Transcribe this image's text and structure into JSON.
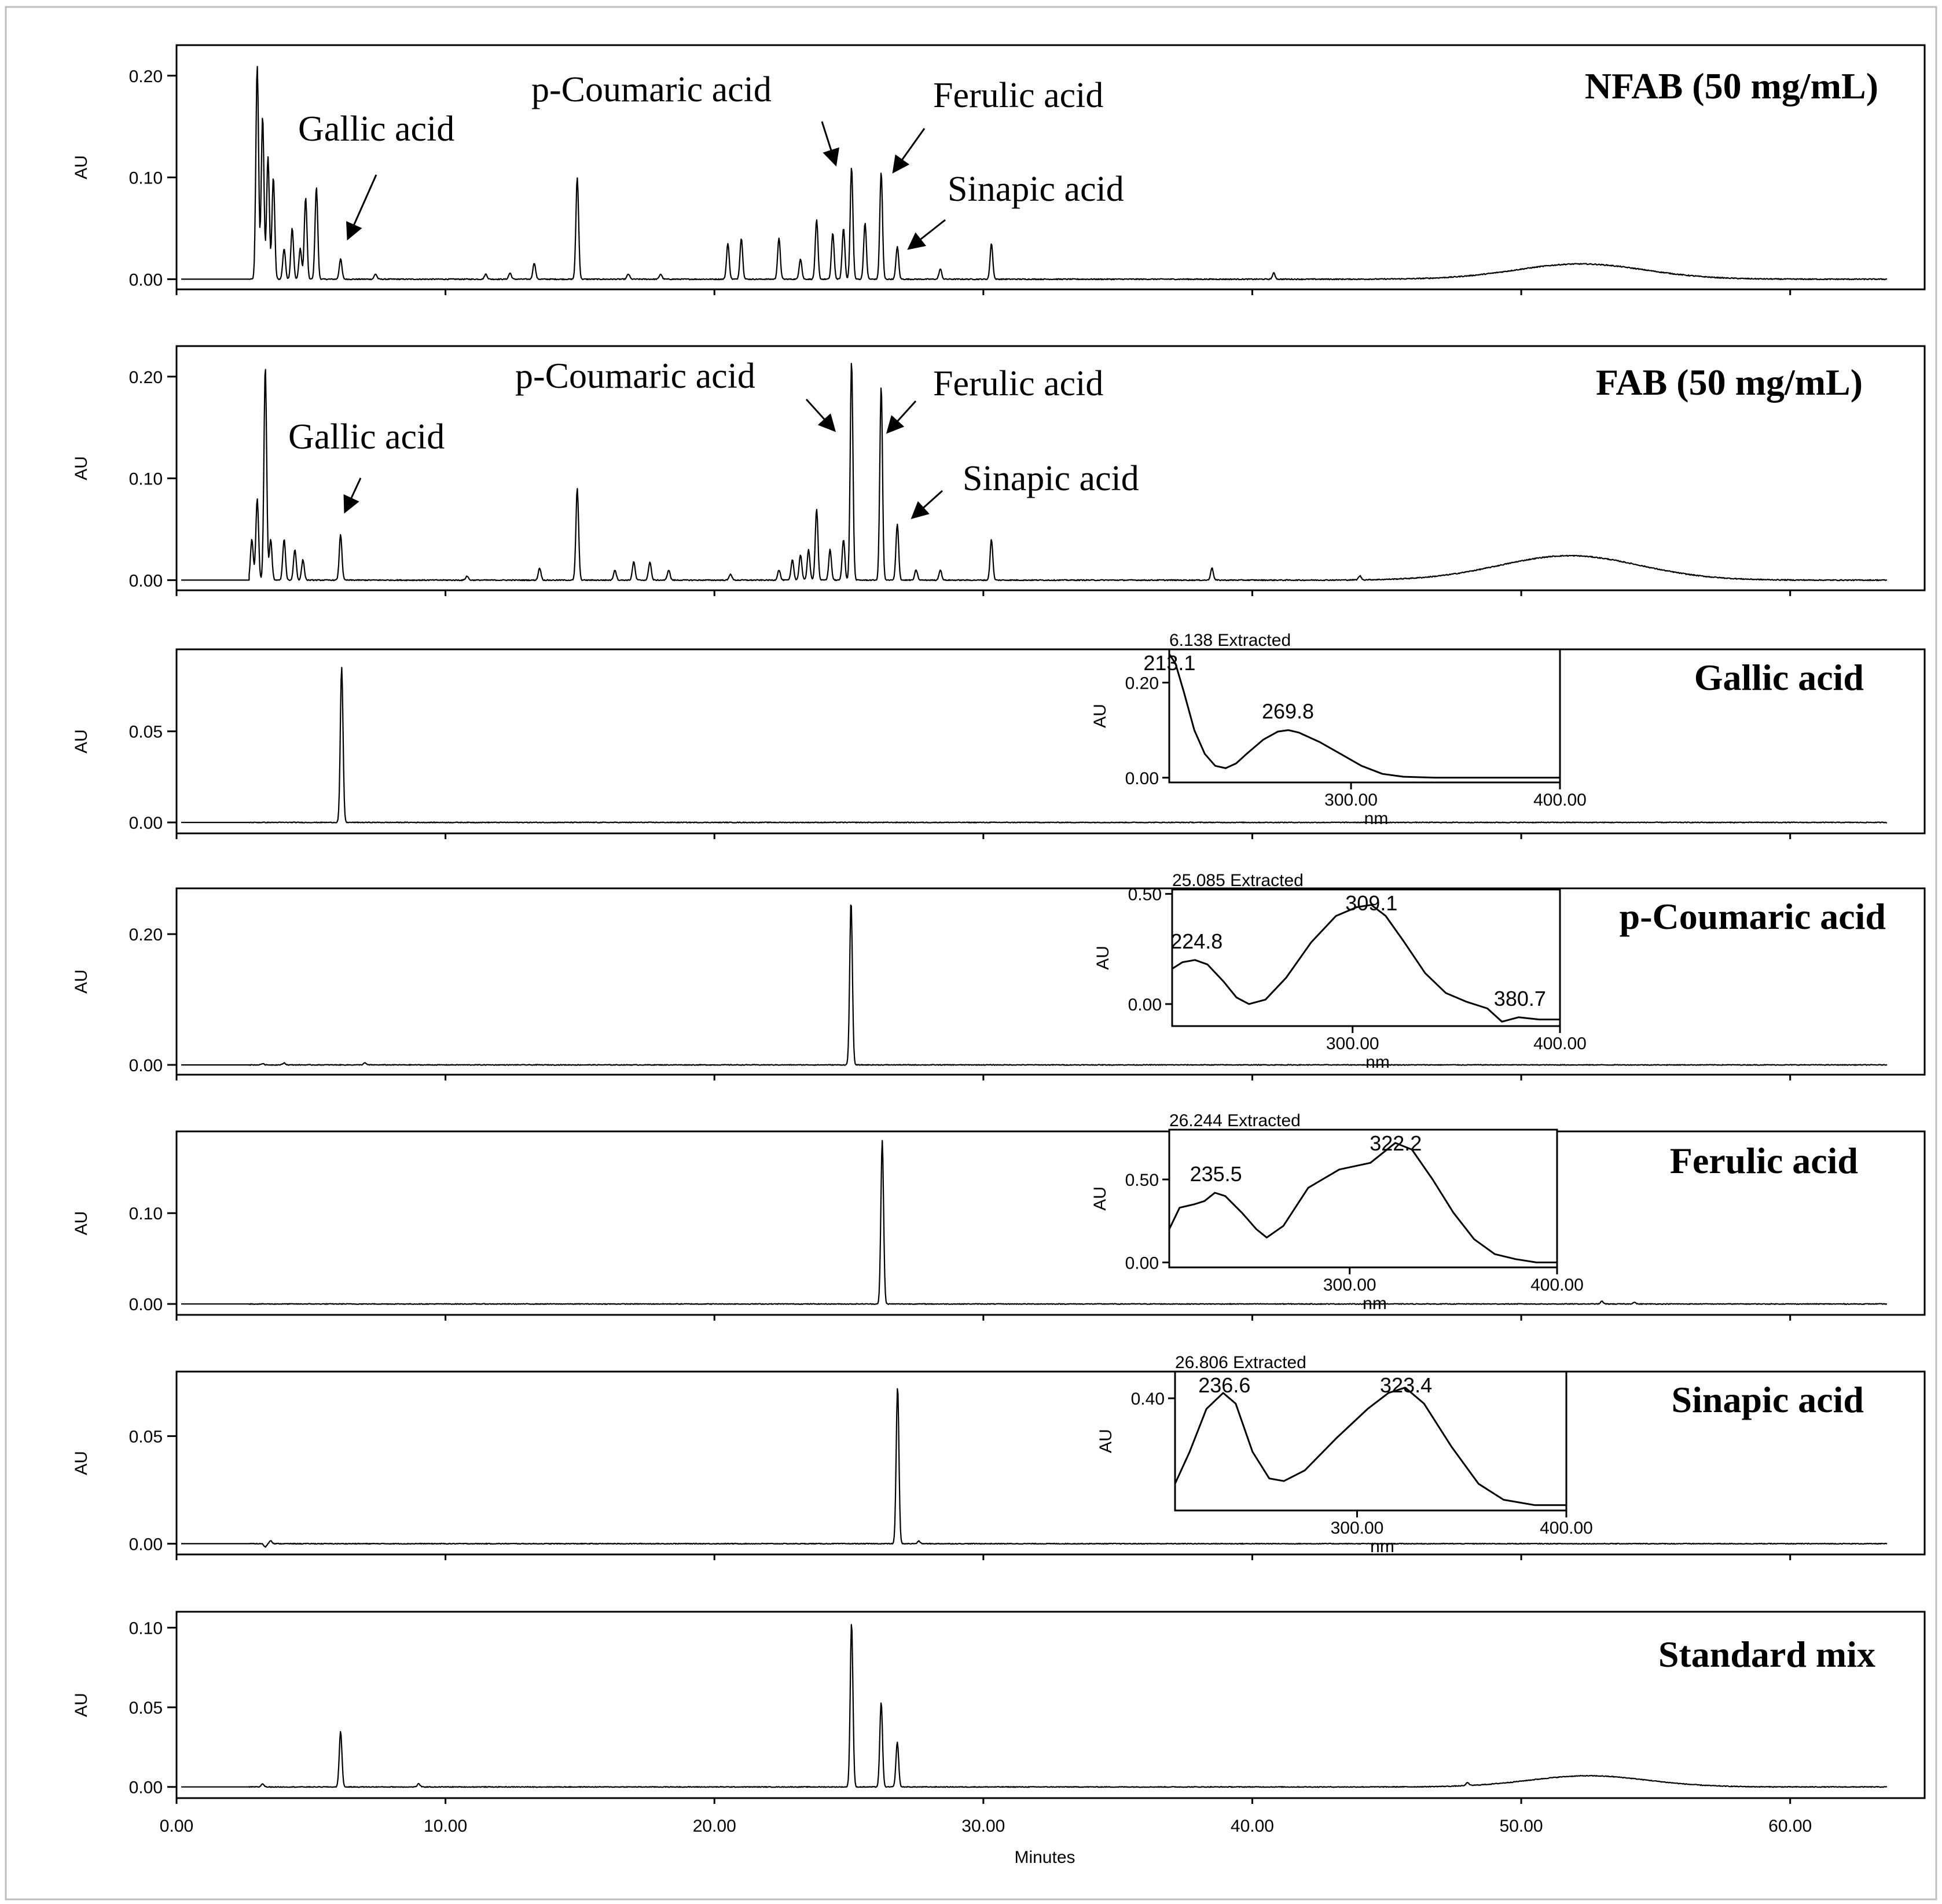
{
  "chart_data": {
    "type": "line",
    "figure_kind": "HPLC chromatograms with inset UV spectra",
    "xlabel": "Minutes",
    "ylabel": "AU",
    "xlim": [
      0,
      65
    ],
    "xticks": [
      "0.00",
      "10.00",
      "20.00",
      "30.00",
      "40.00",
      "50.00",
      "60.00"
    ],
    "panels": [
      {
        "title": "NFAB (50 mg/mL)",
        "ylabel": "AU",
        "ylim": [
          -0.01,
          0.23
        ],
        "yticks": [
          "0.00",
          "0.10",
          "0.20"
        ],
        "baseline": 0.0,
        "peaks": [
          [
            3.0,
            0.21
          ],
          [
            3.2,
            0.16
          ],
          [
            3.4,
            0.12
          ],
          [
            3.6,
            0.1
          ],
          [
            4.0,
            0.03
          ],
          [
            4.3,
            0.05
          ],
          [
            4.6,
            0.03
          ],
          [
            4.8,
            0.08
          ],
          [
            5.2,
            0.09
          ],
          [
            6.1,
            0.02
          ],
          [
            7.4,
            0.005
          ],
          [
            11.5,
            0.005
          ],
          [
            12.4,
            0.006
          ],
          [
            13.3,
            0.016
          ],
          [
            14.9,
            0.1
          ],
          [
            16.8,
            0.005
          ],
          [
            18.0,
            0.005
          ],
          [
            20.5,
            0.035
          ],
          [
            21.0,
            0.04
          ],
          [
            22.4,
            0.04
          ],
          [
            23.2,
            0.02
          ],
          [
            23.8,
            0.058
          ],
          [
            24.4,
            0.045
          ],
          [
            24.8,
            0.05
          ],
          [
            25.1,
            0.11
          ],
          [
            25.6,
            0.055
          ],
          [
            26.2,
            0.105
          ],
          [
            26.8,
            0.032
          ],
          [
            28.4,
            0.01
          ],
          [
            30.3,
            0.035
          ],
          [
            40.8,
            0.006
          ]
        ],
        "humps": [
          [
            52.2,
            0.015,
            2.4
          ]
        ],
        "annotations": [
          {
            "text": "Gallic  acid",
            "time": 6.1
          },
          {
            "text": "p-Coumaric  acid",
            "time": 25.1
          },
          {
            "text": "Ferulic  acid",
            "time": 26.2
          },
          {
            "text": "Sinapic  acid",
            "time": 26.8
          }
        ]
      },
      {
        "title": "FAB (50 mg/mL)",
        "ylabel": "AU",
        "ylim": [
          -0.01,
          0.23
        ],
        "yticks": [
          "0.00",
          "0.10",
          "0.20"
        ],
        "baseline": 0.0,
        "peaks": [
          [
            2.8,
            0.04
          ],
          [
            3.0,
            0.08
          ],
          [
            3.3,
            0.21
          ],
          [
            3.5,
            0.04
          ],
          [
            4.0,
            0.04
          ],
          [
            4.4,
            0.03
          ],
          [
            4.7,
            0.02
          ],
          [
            6.1,
            0.045
          ],
          [
            10.8,
            0.004
          ],
          [
            13.5,
            0.012
          ],
          [
            14.9,
            0.09
          ],
          [
            16.3,
            0.01
          ],
          [
            17.0,
            0.018
          ],
          [
            17.6,
            0.018
          ],
          [
            18.3,
            0.01
          ],
          [
            20.6,
            0.006
          ],
          [
            22.4,
            0.01
          ],
          [
            22.9,
            0.02
          ],
          [
            23.2,
            0.025
          ],
          [
            23.5,
            0.03
          ],
          [
            23.8,
            0.07
          ],
          [
            24.3,
            0.03
          ],
          [
            24.8,
            0.04
          ],
          [
            25.1,
            0.215
          ],
          [
            26.2,
            0.19
          ],
          [
            26.8,
            0.055
          ],
          [
            27.5,
            0.01
          ],
          [
            28.4,
            0.01
          ],
          [
            30.3,
            0.04
          ],
          [
            38.5,
            0.012
          ],
          [
            44.0,
            0.004
          ]
        ],
        "humps": [
          [
            51.8,
            0.024,
            2.6
          ]
        ],
        "annotations": [
          {
            "text": "Gallic  acid",
            "time": 6.1
          },
          {
            "text": "p-Coumaric  acid",
            "time": 25.1
          },
          {
            "text": "Ferulic  acid",
            "time": 26.2
          },
          {
            "text": "Sinapic  acid",
            "time": 26.8
          }
        ]
      },
      {
        "title": "Gallic acid",
        "ylabel": "AU",
        "ylim": [
          -0.006,
          0.095
        ],
        "yticks": [
          "0.00",
          "0.05"
        ],
        "baseline": 0.0,
        "peaks": [
          [
            6.14,
            0.085
          ]
        ],
        "humps": [],
        "inset": {
          "header": "6.138  Extracted",
          "xlabel": "nm",
          "ylabel": "AU",
          "xlim": [
            213,
            400
          ],
          "ylim": [
            -0.01,
            0.27
          ],
          "xticks": [
            "300.00",
            "400.00"
          ],
          "yticks": [
            "0.00",
            "0.20"
          ],
          "spectrum": [
            [
              213,
              0.26
            ],
            [
              216,
              0.24
            ],
            [
              220,
              0.18
            ],
            [
              225,
              0.1
            ],
            [
              230,
              0.05
            ],
            [
              235,
              0.025
            ],
            [
              240,
              0.02
            ],
            [
              245,
              0.03
            ],
            [
              250,
              0.05
            ],
            [
              258,
              0.08
            ],
            [
              265,
              0.097
            ],
            [
              270,
              0.1
            ],
            [
              275,
              0.095
            ],
            [
              285,
              0.075
            ],
            [
              295,
              0.05
            ],
            [
              305,
              0.025
            ],
            [
              315,
              0.008
            ],
            [
              325,
              0.002
            ],
            [
              340,
              0.0
            ],
            [
              400,
              0.0
            ]
          ],
          "peak_labels": [
            {
              "wl": 213.1,
              "text": "213.1"
            },
            {
              "wl": 269.8,
              "text": "269.8"
            }
          ]
        }
      },
      {
        "title": "p-Coumaric  acid",
        "ylabel": "AU",
        "ylim": [
          -0.015,
          0.27
        ],
        "yticks": [
          "0.00",
          "0.20"
        ],
        "baseline": 0.0,
        "peaks": [
          [
            25.08,
            0.25
          ],
          [
            3.2,
            0.002
          ],
          [
            4.0,
            0.003
          ],
          [
            7.0,
            0.003
          ]
        ],
        "humps": [],
        "inset": {
          "header": "25.085  Extracted",
          "xlabel": "nm",
          "ylabel": "AU",
          "xlim": [
            213,
            400
          ],
          "ylim": [
            -0.1,
            0.52
          ],
          "xticks": [
            "300.00",
            "400.00"
          ],
          "yticks": [
            "0.00",
            "0.50"
          ],
          "spectrum": [
            [
              213,
              0.16
            ],
            [
              218,
              0.19
            ],
            [
              224,
              0.2
            ],
            [
              230,
              0.18
            ],
            [
              238,
              0.1
            ],
            [
              244,
              0.03
            ],
            [
              250,
              0.0
            ],
            [
              258,
              0.02
            ],
            [
              268,
              0.12
            ],
            [
              280,
              0.28
            ],
            [
              292,
              0.4
            ],
            [
              302,
              0.44
            ],
            [
              309,
              0.45
            ],
            [
              316,
              0.4
            ],
            [
              325,
              0.28
            ],
            [
              335,
              0.14
            ],
            [
              345,
              0.05
            ],
            [
              355,
              0.01
            ],
            [
              365,
              -0.02
            ],
            [
              372,
              -0.08
            ],
            [
              380,
              -0.06
            ],
            [
              390,
              -0.07
            ],
            [
              400,
              -0.07
            ]
          ],
          "peak_labels": [
            {
              "wl": 224.8,
              "text": "224.8"
            },
            {
              "wl": 309.1,
              "text": "309.1"
            },
            {
              "wl": 380.7,
              "text": "380.7"
            }
          ]
        }
      },
      {
        "title": "Ferulic  acid",
        "ylabel": "AU",
        "ylim": [
          -0.012,
          0.19
        ],
        "yticks": [
          "0.00",
          "0.10"
        ],
        "baseline": 0.0,
        "peaks": [
          [
            26.24,
            0.18
          ],
          [
            53.0,
            0.003
          ],
          [
            54.2,
            0.002
          ]
        ],
        "humps": [],
        "inset": {
          "header": "26.244  Extracted",
          "xlabel": "nm",
          "ylabel": "AU",
          "xlim": [
            213,
            400
          ],
          "ylim": [
            -0.03,
            0.8
          ],
          "xticks": [
            "300.00",
            "400.00"
          ],
          "yticks": [
            "0.00",
            "0.50"
          ],
          "spectrum": [
            [
              213,
              0.2
            ],
            [
              218,
              0.33
            ],
            [
              225,
              0.35
            ],
            [
              230,
              0.37
            ],
            [
              235,
              0.42
            ],
            [
              240,
              0.4
            ],
            [
              248,
              0.3
            ],
            [
              255,
              0.2
            ],
            [
              260,
              0.15
            ],
            [
              268,
              0.22
            ],
            [
              280,
              0.45
            ],
            [
              295,
              0.56
            ],
            [
              310,
              0.6
            ],
            [
              322,
              0.72
            ],
            [
              330,
              0.68
            ],
            [
              340,
              0.5
            ],
            [
              350,
              0.3
            ],
            [
              360,
              0.14
            ],
            [
              370,
              0.05
            ],
            [
              380,
              0.02
            ],
            [
              390,
              0.0
            ],
            [
              400,
              0.0
            ]
          ],
          "peak_labels": [
            {
              "wl": 235.5,
              "text": "235.5"
            },
            {
              "wl": 322.2,
              "text": "322.2"
            }
          ]
        }
      },
      {
        "title": "Sinapic  acid",
        "ylabel": "AU",
        "ylim": [
          -0.005,
          0.08
        ],
        "yticks": [
          "0.00",
          "0.05"
        ],
        "baseline": 0.0,
        "peaks": [
          [
            26.81,
            0.073
          ],
          [
            3.5,
            0.0015
          ],
          [
            3.3,
            -0.0015
          ],
          [
            27.6,
            0.0012
          ]
        ],
        "humps": [],
        "inset": {
          "header": "26.806  Extracted",
          "xlabel": "nm",
          "ylabel": "AU",
          "xlim": [
            213,
            400
          ],
          "ylim": [
            -0.02,
            0.5
          ],
          "xticks": [
            "300.00",
            "400.00"
          ],
          "yticks": [
            "0.40"
          ],
          "spectrum": [
            [
              213,
              0.08
            ],
            [
              220,
              0.2
            ],
            [
              228,
              0.36
            ],
            [
              236,
              0.42
            ],
            [
              242,
              0.38
            ],
            [
              250,
              0.2
            ],
            [
              258,
              0.1
            ],
            [
              265,
              0.09
            ],
            [
              275,
              0.13
            ],
            [
              290,
              0.25
            ],
            [
              305,
              0.36
            ],
            [
              315,
              0.42
            ],
            [
              323,
              0.44
            ],
            [
              332,
              0.38
            ],
            [
              345,
              0.22
            ],
            [
              358,
              0.08
            ],
            [
              370,
              0.02
            ],
            [
              385,
              0.0
            ],
            [
              400,
              0.0
            ]
          ],
          "peak_labels": [
            {
              "wl": 236.6,
              "text": "236.6"
            },
            {
              "wl": 323.4,
              "text": "323.4"
            }
          ]
        }
      },
      {
        "title": "Standard mix",
        "ylabel": "AU",
        "ylim": [
          -0.007,
          0.11
        ],
        "yticks": [
          "0.00",
          "0.05",
          "0.10"
        ],
        "baseline": 0.0,
        "peaks": [
          [
            3.2,
            0.002
          ],
          [
            6.1,
            0.035
          ],
          [
            9.0,
            0.002
          ],
          [
            25.1,
            0.103
          ],
          [
            26.2,
            0.053
          ],
          [
            26.8,
            0.028
          ],
          [
            48.0,
            0.002
          ]
        ],
        "humps": [
          [
            52.5,
            0.007,
            2.2
          ]
        ],
        "annotations": []
      }
    ]
  }
}
